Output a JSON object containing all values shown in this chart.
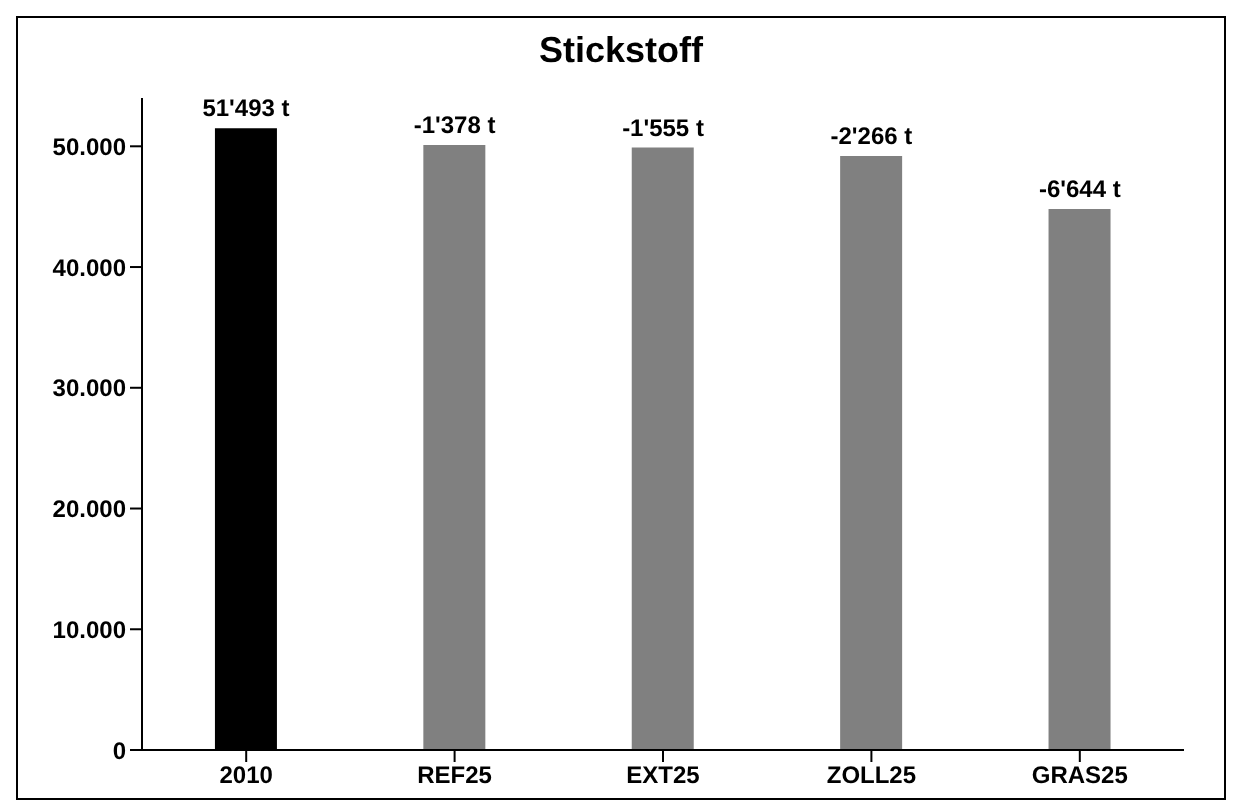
{
  "chart_data": {
    "type": "bar",
    "title": "Stickstoff",
    "categories": [
      "2010",
      "REF25",
      "EXT25",
      "ZOLL25",
      "GRAS25"
    ],
    "values": [
      51493,
      50100,
      49900,
      49200,
      44800
    ],
    "colors": [
      "#000000",
      "#808080",
      "#808080",
      "#808080",
      "#808080"
    ],
    "value_labels": [
      "51'493 t",
      null,
      null,
      null,
      null
    ],
    "annotations": [
      {
        "text": "-1'378 t",
        "x": "REF25",
        "y": 50100
      },
      {
        "text": "-1'555 t",
        "x": "EXT25",
        "y": 49900
      },
      {
        "text": "-2'266 t",
        "x": "ZOLL25",
        "y": 49200
      },
      {
        "text": "-6'644 t",
        "x": "GRAS25",
        "y": 44800
      }
    ],
    "ylim": [
      0,
      54000
    ],
    "yticks": [
      {
        "value": 0,
        "label": "0"
      },
      {
        "value": 10000,
        "label": "10.000"
      },
      {
        "value": 20000,
        "label": "20.000"
      },
      {
        "value": 30000,
        "label": "30.000"
      },
      {
        "value": 40000,
        "label": "40.000"
      },
      {
        "value": 50000,
        "label": "50.000"
      }
    ],
    "grid": false,
    "legend": false
  }
}
